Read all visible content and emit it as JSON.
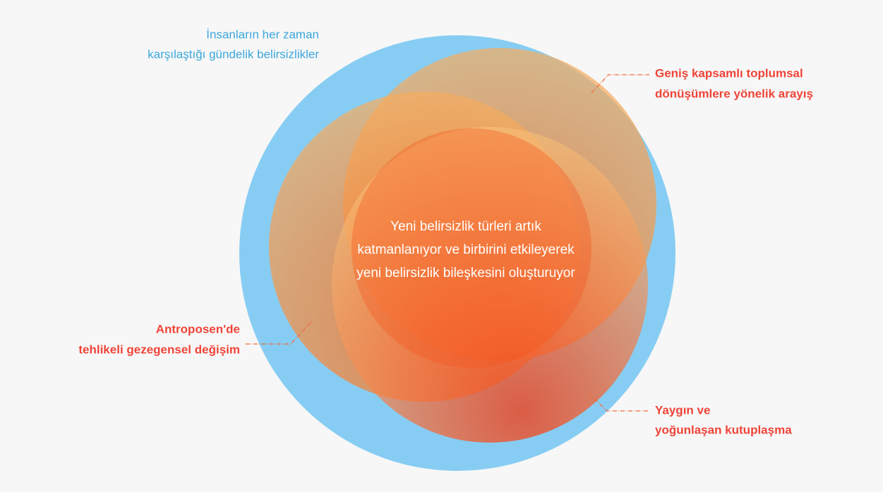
{
  "outer_label": {
    "lines": [
      "İnsanların her zaman",
      "karşılaştığı gündelik belirsizlikler"
    ]
  },
  "layers": [
    {
      "lines": [
        "Geniş kapsamlı toplumsal",
        "dönüşümlere yönelik arayış"
      ]
    },
    {
      "lines": [
        "Antroposen'de",
        "tehlikeli gezegensel değişim"
      ]
    },
    {
      "lines": [
        "Yaygın ve",
        "yoğunlaşan kutuplaşma"
      ]
    }
  ],
  "center": {
    "lines": [
      "Yeni belirsizlik türleri artık",
      "katmanlanıyor ve birbirini etkileyerek",
      "yeni belirsizlik bileşkesini oluşturuyor"
    ]
  }
}
